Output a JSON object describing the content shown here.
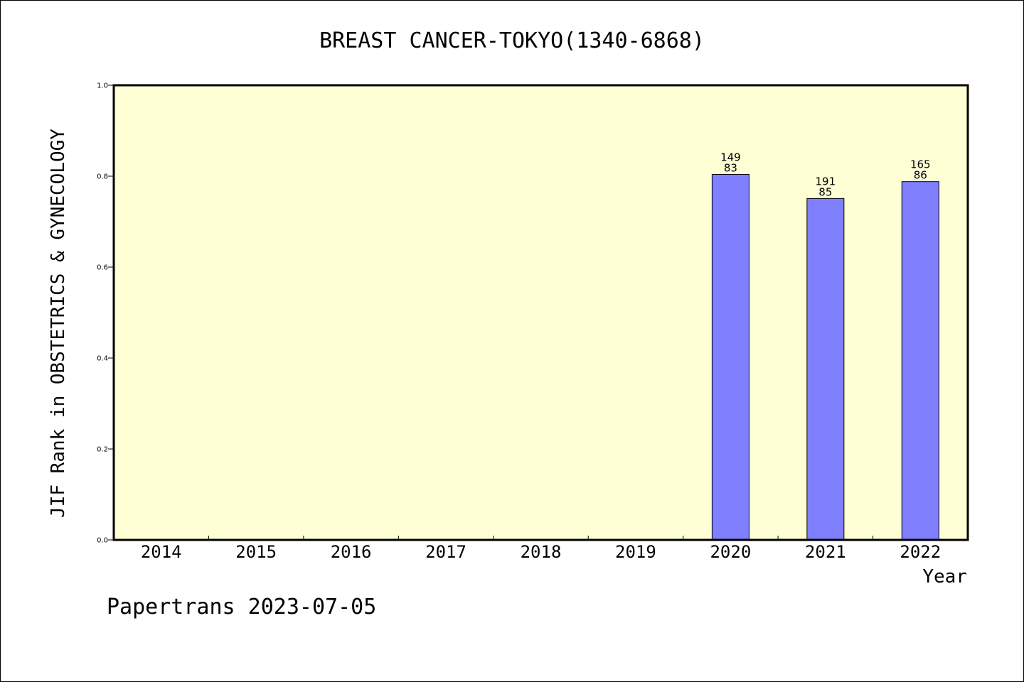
{
  "chart_data": {
    "type": "bar",
    "title": "BREAST CANCER-TOKYO(1340-6868)",
    "xlabel": "Year",
    "ylabel": "JIF Rank in OBSTETRICS & GYNECOLOGY",
    "categories": [
      "2014",
      "2015",
      "2016",
      "2017",
      "2018",
      "2019",
      "2020",
      "2021",
      "2022"
    ],
    "values": [
      null,
      null,
      null,
      null,
      null,
      null,
      0.804,
      0.751,
      0.788
    ],
    "bar_labels": [
      null,
      null,
      null,
      null,
      null,
      null,
      {
        "total": "149",
        "rank": "83"
      },
      {
        "total": "191",
        "rank": "85"
      },
      {
        "total": "165",
        "rank": "86"
      }
    ],
    "ylim": [
      0,
      1.0
    ],
    "yticks": [
      "0.0",
      "0.2",
      "0.4",
      "0.6",
      "0.8",
      "1.0"
    ],
    "plot_background": "#ffffd5",
    "bar_color": "#8080ff",
    "grid": false,
    "legend": "none"
  },
  "footer": "Papertrans 2023-07-05"
}
